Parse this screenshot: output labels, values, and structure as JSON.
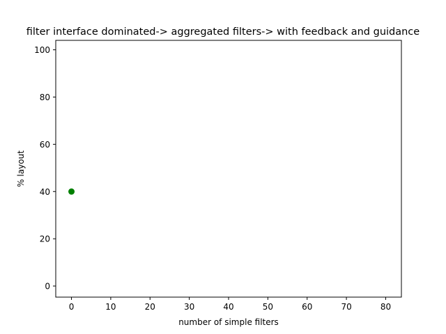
{
  "chart_data": {
    "type": "scatter",
    "title": "filter interface dominated-> aggregated filters-> with feedback and guidance",
    "xlabel": "number of simple filters",
    "ylabel": "% layout",
    "xlim": [
      -4,
      84
    ],
    "ylim": [
      -4.7,
      104
    ],
    "xticks": [
      0,
      10,
      20,
      30,
      40,
      50,
      60,
      70,
      80
    ],
    "yticks": [
      0,
      20,
      40,
      60,
      80,
      100
    ],
    "grid": false,
    "points": [
      {
        "x": 0,
        "y": 40
      }
    ],
    "marker_color": "#008000"
  }
}
